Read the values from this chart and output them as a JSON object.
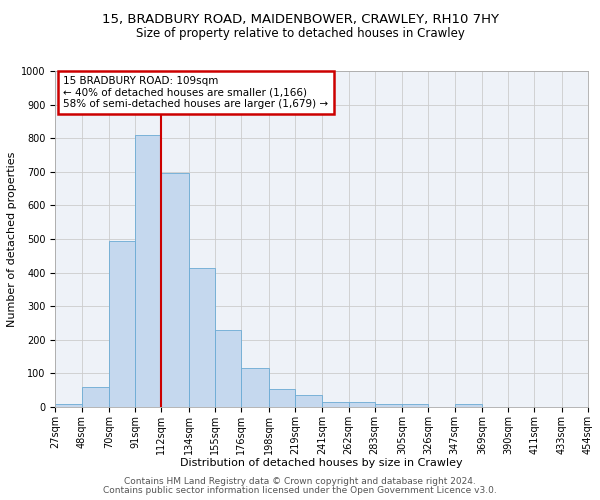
{
  "title_line1": "15, BRADBURY ROAD, MAIDENBOWER, CRAWLEY, RH10 7HY",
  "title_line2": "Size of property relative to detached houses in Crawley",
  "xlabel": "Distribution of detached houses by size in Crawley",
  "ylabel": "Number of detached properties",
  "bin_labels": [
    "27sqm",
    "48sqm",
    "70sqm",
    "91sqm",
    "112sqm",
    "134sqm",
    "155sqm",
    "176sqm",
    "198sqm",
    "219sqm",
    "241sqm",
    "262sqm",
    "283sqm",
    "305sqm",
    "326sqm",
    "347sqm",
    "369sqm",
    "390sqm",
    "411sqm",
    "433sqm",
    "454sqm"
  ],
  "bin_edges": [
    27,
    48,
    70,
    91,
    112,
    134,
    155,
    176,
    198,
    219,
    241,
    262,
    283,
    305,
    326,
    347,
    369,
    390,
    411,
    433,
    454
  ],
  "bar_heights": [
    8,
    60,
    495,
    810,
    697,
    412,
    228,
    115,
    52,
    35,
    15,
    15,
    10,
    10,
    0,
    10,
    0,
    0,
    0,
    0
  ],
  "bar_color": "#c5d8ee",
  "bar_edge_color": "#6aaad4",
  "bar_alpha": 1.0,
  "redline_x": 112,
  "annotation_text": "15 BRADBURY ROAD: 109sqm\n← 40% of detached houses are smaller (1,166)\n58% of semi-detached houses are larger (1,679) →",
  "annotation_box_color": "#ffffff",
  "annotation_box_edgecolor": "#cc0000",
  "ylim": [
    0,
    1000
  ],
  "yticks": [
    0,
    100,
    200,
    300,
    400,
    500,
    600,
    700,
    800,
    900,
    1000
  ],
  "grid_color": "#cccccc",
  "background_color": "#eef2f8",
  "footer_line1": "Contains HM Land Registry data © Crown copyright and database right 2024.",
  "footer_line2": "Contains public sector information licensed under the Open Government Licence v3.0.",
  "title_fontsize": 9.5,
  "subtitle_fontsize": 8.5,
  "axis_label_fontsize": 8,
  "tick_fontsize": 7,
  "annotation_fontsize": 7.5,
  "footer_fontsize": 6.5
}
